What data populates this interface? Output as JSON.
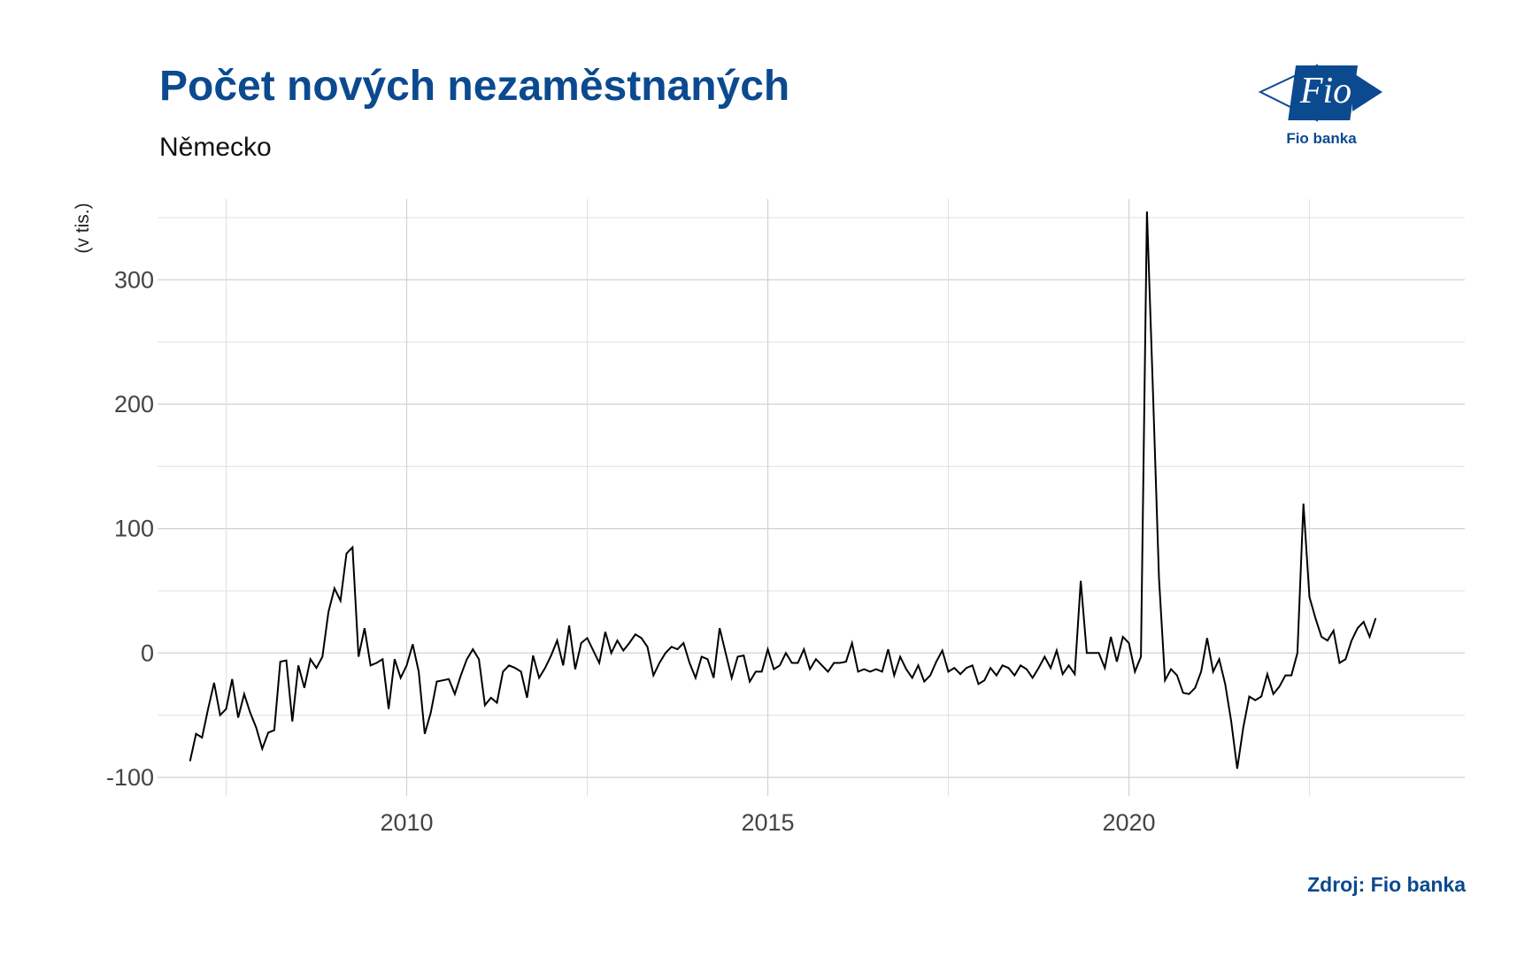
{
  "header": {
    "title": "Počet nových nezaměstnaných",
    "subtitle": "Německo"
  },
  "logo": {
    "text": "Fio",
    "caption": "Fio banka",
    "color": "#0b4a8f"
  },
  "footer": {
    "source": "Zdroj: Fio banka"
  },
  "chart_data": {
    "type": "line",
    "title": "Počet nových nezaměstnaných",
    "subtitle": "Německo",
    "xlabel": "",
    "ylabel": "(v tis.)",
    "xlim": [
      2006.55,
      2024.65
    ],
    "ylim": [
      -115,
      365
    ],
    "x_ticks": [
      2010,
      2015,
      2020
    ],
    "y_ticks": [
      -100,
      0,
      100,
      200,
      300
    ],
    "grid": true,
    "line_color": "#000000",
    "series": [
      {
        "name": "",
        "x_start": 2007.0,
        "step": 0.08333,
        "values": [
          -87,
          -65,
          -68,
          -45,
          -24,
          -50,
          -45,
          -21,
          -52,
          -33,
          -48,
          -60,
          -77,
          -64,
          -62,
          -7,
          -6,
          -55,
          -10,
          -28,
          -5,
          -12,
          -3,
          33,
          52,
          42,
          80,
          85,
          -3,
          20,
          -10,
          -8,
          -5,
          -45,
          -5,
          -20,
          -10,
          7,
          -15,
          -65,
          -48,
          -23,
          -22,
          -21,
          -33,
          -18,
          -5,
          3,
          -5,
          -42,
          -36,
          -40,
          -15,
          -10,
          -12,
          -15,
          -36,
          -2,
          -20,
          -12,
          -2,
          10,
          -10,
          22,
          -13,
          8,
          12,
          2,
          -8,
          17,
          0,
          10,
          2,
          8,
          15,
          12,
          5,
          -18,
          -8,
          0,
          5,
          3,
          8,
          -8,
          -20,
          -3,
          -5,
          -20,
          20,
          0,
          -20,
          -3,
          -2,
          -23,
          -15,
          -15,
          3,
          -13,
          -10,
          0,
          -8,
          -8,
          3,
          -13,
          -5,
          -10,
          -15,
          -8,
          -8,
          -7,
          8,
          -15,
          -13,
          -15,
          -13,
          -15,
          3,
          -18,
          -3,
          -13,
          -20,
          -10,
          -23,
          -18,
          -7,
          2,
          -15,
          -12,
          -17,
          -12,
          -10,
          -25,
          -22,
          -12,
          -18,
          -10,
          -12,
          -18,
          -10,
          -13,
          -20,
          -12,
          -3,
          -12,
          2,
          -17,
          -10,
          -17,
          58,
          0,
          0,
          0,
          -12,
          13,
          -7,
          13,
          8,
          -15,
          -3,
          355,
          210,
          60,
          -22,
          -13,
          -18,
          -32,
          -33,
          -28,
          -15,
          12,
          -15,
          -5,
          -25,
          -55,
          -93,
          -60,
          -35,
          -38,
          -35,
          -17,
          -33,
          -27,
          -18,
          -18,
          0,
          120,
          45,
          28,
          13,
          10,
          18,
          -8,
          -5,
          10,
          20,
          25,
          13,
          28
        ]
      }
    ]
  }
}
